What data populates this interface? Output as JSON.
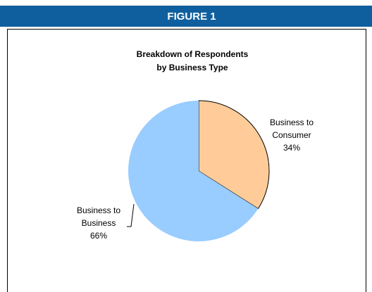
{
  "header": "FIGURE 1",
  "chart_data": {
    "type": "pie",
    "title": [
      "Breakdown of Respondents",
      "by Business Type"
    ],
    "categories": [
      "Business to Consumer",
      "Business to Business"
    ],
    "values": [
      34,
      66
    ],
    "value_labels": [
      "34%",
      "66%"
    ],
    "colors": [
      "#ffcc99",
      "#99ccff"
    ]
  }
}
